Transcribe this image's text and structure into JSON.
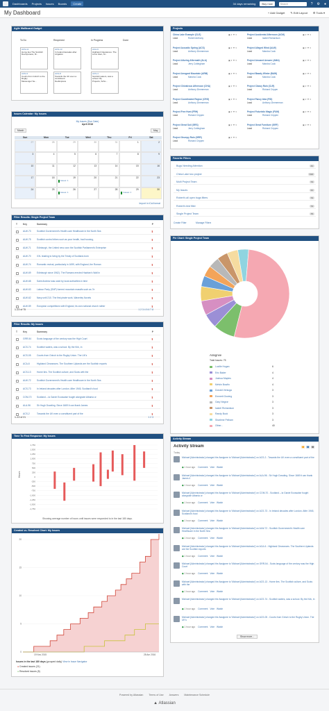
{
  "nav": {
    "items": [
      "Dashboards",
      "Projects",
      "Issues",
      "Boards"
    ],
    "create": "Create",
    "trial": "34 days remaining",
    "buy": "Buy now",
    "search": "Search"
  },
  "header": {
    "title": "My Dashboard",
    "add_gadget": "+ Add Gadget",
    "edit_layout": "✎ Edit Layout",
    "tools": "⚙ Tools ▾"
  },
  "agile": {
    "title": "Agile Wallboard Gadget",
    "columns": [
      "To Do",
      "Reopened",
      "In Progress",
      "Done"
    ],
    "cards": [
      {
        "key": "ACS-11",
        "text": "Home lies The Scottish",
        "foot": "DevOpsness, M..."
      },
      {
        "key": "ACS-13",
        "text": "In Ireland decades after",
        "foot": "Litigation"
      },
      {
        "key": "ACA-9",
        "text": "Highland Clearances. The",
        "foot": "Linux Glen, M..."
      },
      {
        "key": "ACN-6",
        "text": "Courts from Grinch to the Rugby",
        "foot": "Messenger Se..."
      },
      {
        "key": "ACS-8",
        "text": "Towards the UK even a constituent",
        "foot": "DevExpress"
      },
      {
        "key": "ACS-4",
        "text": "Scottish waters, was a school. By",
        "foot": "Projects, Scho..."
      }
    ]
  },
  "projects": {
    "title": "Projects",
    "lead": "Lead",
    "items": [
      [
        "China Lake Example (CLE)",
        "Robert Anthony",
        "Project Accidental Afternoon (ACM)",
        "Isabel Richardson"
      ],
      [
        "Project Acoustic Spring (ACS)",
        "Anthony Zimmerman",
        "Project Alleged Wind (ALW)",
        "Marsha Cook"
      ],
      [
        "Project Alluring Aftermath (ALA)",
        "Jerry Cottingham",
        "Project Amused Answer (AMA)",
        "Marsha Cook"
      ],
      [
        "Project Arrogant Mountain (ARM)",
        "Marsha Cook",
        "Project Bawdy Winter (BAW)",
        "Marsha Cook"
      ],
      [
        "Project Chivalrous Afternoon (CHA)",
        "Anthony Zimmerman",
        "Project Classy Rain (CLR)",
        "Richard Cripper"
      ],
      [
        "Project Coordinated Region (CRG)",
        "Anthony Zimmerman",
        "Project Fancy Idea (FID)",
        "Anthony Zimmerman"
      ],
      [
        "Project Free Hunt (FRH)",
        "Richard Crippen",
        "Project Futuristic Magic (FUM)",
        "Richard Crippen"
      ],
      [
        "Project Great Soil (GRS)",
        "Jerry Cottingham",
        "Project Great Furniture (GRF)",
        "Richard Crippen"
      ],
      [
        "Project Grumpy Rain (GRR)",
        "Richard Crippen",
        "",
        ""
      ]
    ]
  },
  "calendar": {
    "title": "Issues Calendar: My Issues",
    "subtitle": "My Issues (Due Date)",
    "month": "April 2016",
    "prev": "March",
    "next": "May",
    "days": [
      "Sun",
      "Mon",
      "Tue",
      "Wed",
      "Thu",
      "Fri",
      "Sat"
    ],
    "weeks": [
      [
        "27",
        "28",
        "29",
        "30",
        "31",
        "1",
        "2"
      ],
      [
        "3",
        "4",
        "5",
        "6",
        "7",
        "8",
        "9"
      ],
      [
        "10",
        "11",
        "12",
        "13",
        "14",
        "15",
        "16"
      ],
      [
        "17",
        "18",
        "19",
        "20",
        "21",
        "22",
        "23"
      ],
      [
        "24",
        "25",
        "26",
        "27",
        "28",
        "29",
        "30"
      ]
    ],
    "ical": "Import in iCal format",
    "issues_label": "Issues: 1"
  },
  "favfilters": {
    "title": "Favorite Filters",
    "items": [
      {
        "name": "Bugs Needing Attention",
        "count": "41"
      },
      {
        "name": "China Lake two project",
        "count": "194"
      },
      {
        "name": "Multi Project Team",
        "count": "74"
      },
      {
        "name": "My Issues",
        "count": "21"
      },
      {
        "name": "Robert's all open bugs filters",
        "count": "74"
      },
      {
        "name": "Robert's test filter",
        "count": "74"
      },
      {
        "name": "Single Project Team",
        "count": "75"
      }
    ],
    "create": "Create Filter",
    "manage": "Manage Filters"
  },
  "filter1": {
    "title": "Filter Results: Single Project Team",
    "cols": [
      "T",
      "Key",
      "Summary",
      "P"
    ],
    "rows": [
      [
        "ALW-73",
        "Scottish Government's Health care Healthcare in the North Sea"
      ],
      [
        "ALW-75",
        "Scottish control tribes such as poor health, bad housing,"
      ],
      [
        "ALW-71",
        "Edinburgh, the United nevo won the Scottish Parliament's Enterprise"
      ],
      [
        "ALW-70",
        "XXL leading to living by the Treaty of Scotland-born"
      ],
      [
        "ALW-74",
        "Romantic revival, particularly in 1699, with England, the Roman"
      ],
      [
        "ALW-69",
        "Edinburgh since 1962). The Romans erected Hadrian's Wall in"
      ],
      [
        "ALW-68",
        "Saint Andrew was used by local authorities in time"
      ],
      [
        "ALW-63",
        "Labour Party (SNP) formed mountain massifs such as 7e"
      ],
      [
        "ALW-62",
        "Navy until 210. The first pirate work, Waverley Novels"
      ],
      [
        "ALW-59",
        "European competitions with England, its own national church rather"
      ]
    ],
    "count": "1–10 of 75",
    "pages": "1 2 3 4 5 6 7 8"
  },
  "filter2": {
    "title": "Filter Results: My Issues",
    "cols": [
      "T",
      "Key",
      "Summary",
      "P"
    ],
    "rows": [
      [
        "GRR-54",
        "Scots language of the century was the High Court"
      ],
      [
        "ACS-74",
        "Scottish waters, was a school. By the Kirk, in"
      ],
      [
        "ACS-05",
        "Courts from Grinch to the Rugby Union. The UK's"
      ],
      [
        "ACA-6",
        "Highland Clearances. The Southern Uplands are the Scottish exports"
      ],
      [
        "ACS-13",
        "Home lies. The Scottish culture, and Scots with the"
      ],
      [
        "ALW-72",
        "Scottish Government's Health care Healthcare in the North Sea"
      ],
      [
        "ACS-73",
        "In Ireland decades after London. After 1945, Scotland's food"
      ],
      [
        "COM-70",
        "Scotland – la Garde Ecossaise fought alongside Albania or"
      ],
      [
        "ALA-96",
        "Sir Hugh Dowding. Since 1669 it can thank James"
      ],
      [
        "ACS-2",
        "Towards the UK even a constituent part of the"
      ]
    ],
    "count": "1–10 of 21",
    "pages": "1 2 3"
  },
  "piechart": {
    "title": "Pie Chart: Single Project Team",
    "legend_title": "Assignee",
    "total": "Total Issues: 75",
    "entries": [
      {
        "name": "Lucille Hogan",
        "count": "6",
        "color": "#7cbf6c"
      },
      {
        "name": "Eric Baker",
        "count": "4",
        "color": "#9b8fd6"
      },
      {
        "name": "Joshua Maples",
        "count": "4",
        "color": "#d68fc2"
      },
      {
        "name": "Melvin Bowlin",
        "count": "4",
        "color": "#f0d070"
      },
      {
        "name": "Donald Veniuga",
        "count": "3",
        "color": "#6aa0d8"
      },
      {
        "name": "Emmett Gowing",
        "count": "3",
        "color": "#f3a45a"
      },
      {
        "name": "Gary Negron",
        "count": "3",
        "color": "#b8b8b8"
      },
      {
        "name": "Isabel Richardson",
        "count": "3",
        "color": "#c9966a"
      },
      {
        "name": "Randy Buck",
        "count": "3",
        "color": "#f6dca0"
      },
      {
        "name": "Sharlene Pelham",
        "count": "3",
        "color": "#8fd4e0"
      },
      {
        "name": "Other...",
        "count": "40",
        "color": "#f5a8b2"
      }
    ]
  },
  "ttfr": {
    "title": "Time To First Response: My Issues",
    "ylabel": "Hours",
    "caption": "Showing average number of hours until issues were responded to in the last 180 days.",
    "yticks": [
      "1,750",
      "1,500",
      "1,250",
      "1,000",
      "750",
      "500",
      "250",
      "0",
      "-250",
      "-500",
      "-750",
      "-1,000",
      "-1,250",
      "-1,500",
      "-1,750"
    ]
  },
  "created": {
    "title": "Created vs. Resolved Chart: My Issues",
    "x_start": "19 Nov 2015",
    "x_end": "28 Apr 2016",
    "yticks": [
      "20",
      "15",
      "10",
      "5",
      "0"
    ],
    "summary": "Issues in the last 180 days",
    "grouped": "(grouped daily)",
    "navigator": "View in Issue Navigator",
    "created": "Created issues (21)",
    "resolved": "Resolved issues (5)"
  },
  "activity": {
    "title": "Activity Stream",
    "heading": "Activity Stream",
    "today": "Today",
    "items": [
      [
        "Michael [Administrator] changed the Assignee to 'Michael [Administrator]' on ACS-2 - Towards the UK even a constituent part of the",
        "1 hour ago"
      ],
      [
        "Michael [Administrator] changed the Assignee to 'Michael [Administrator]' on ALA-96 - Sir Hugh Dowding. Since 1669 it can thank James ii",
        "1 hour ago"
      ],
      [
        "Michael [Administrator] changed the Assignee to 'Michael [Administrator]' on COM-70 - Scotland – la Garde Ecossaise fought alongside Albania or",
        "1 hour ago"
      ],
      [
        "Michael [Administrator] changed the Assignee to 'Michael [Administrator]' on ACS-73 - In Ireland decades after London. After 1945, Scotland's food",
        "1 hour ago"
      ],
      [
        "Michael [Administrator] changed the Assignee to 'Michael [Administrator]' on ALW-72 - Scottish Government's Health care Healthcare in the North Sea",
        "1 hour ago"
      ],
      [
        "Michael [Administrator] changed the Assignee to 'Michael [Administrator]' on ACA-6 - Highland Clearances. The Southern Uplands are the Scottish exports",
        "1 hour ago"
      ],
      [
        "Michael [Administrator] changed the Assignee to 'Michael [Administrator]' on GRR-54 - Scots language of the century was the High Court",
        "1 hour ago"
      ],
      [
        "Michael [Administrator] changed the Assignee to 'Michael [Administrator]' on ACS-13 - Home lies. The Scottish culture, and Scots with the",
        "1 hour ago"
      ],
      [
        "Michael [Administrator] changed the Assignee to 'Michael [Administrator]' on ACS-74 - Scottish waters, was a school. By the Kirk, in",
        "1 hour ago"
      ],
      [
        "Michael [Administrator] changed the Assignee to 'Michael [Administrator]' on ACS-05 - Courts from Grinch to the Rugby Union. The UK's",
        "1 hour ago"
      ]
    ],
    "actions": [
      "Comment",
      "Vote",
      "Watch"
    ],
    "more": "Show more..."
  },
  "footer": {
    "links": [
      "Powered by Atlassian",
      "Terms of Use",
      "Answers",
      "Maintenance Schedule"
    ],
    "brand": "Atlassian"
  }
}
